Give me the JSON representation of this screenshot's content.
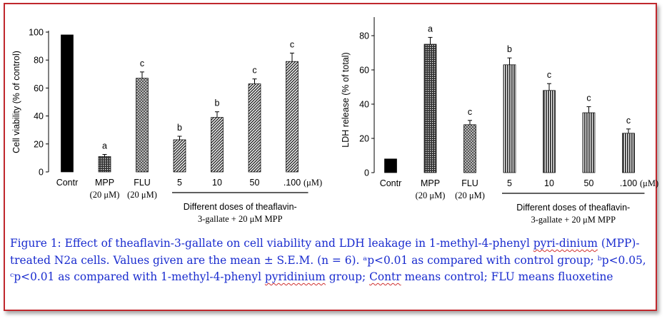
{
  "colors": {
    "frame_border": "#c0282d",
    "caption_text": "#1a2ccf",
    "bar_control": "#000000",
    "spellcheck": "#d03030"
  },
  "chart_data": [
    {
      "type": "bar",
      "ylabel": "Cell viability (% of control)",
      "ylim": [
        0,
        100
      ],
      "yticks": [
        "0",
        "20",
        "40",
        "60",
        "80",
        "100"
      ],
      "categories": [
        "Contr",
        "MPP",
        "FLU",
        "5",
        "10",
        "50",
        ".100"
      ],
      "category_sublabels": [
        "",
        "(20 μM)",
        "(20 μM)",
        "",
        "",
        "",
        ""
      ],
      "unit_label": "(μM)",
      "values": [
        98,
        11,
        67,
        23,
        39,
        63,
        79
      ],
      "errors": [
        0,
        1.5,
        4.5,
        2.5,
        4,
        3.5,
        6
      ],
      "significance": [
        "",
        "a",
        "c",
        "b",
        "b",
        "c",
        "c"
      ],
      "patterns": [
        "solid",
        "dots",
        "cross",
        "diag",
        "diag",
        "diag",
        "diag"
      ],
      "group_label": [
        "Different doses of theaflavin-",
        "3-gallate + 20 μM MPP"
      ]
    },
    {
      "type": "bar",
      "ylabel": "LDH release (% of total)",
      "ylim": [
        0,
        90
      ],
      "yticks": [
        "0",
        "20",
        "40",
        "60",
        "80"
      ],
      "categories": [
        "Contr",
        "MPP",
        "FLU",
        "5",
        "10",
        "50",
        ".100"
      ],
      "category_sublabels": [
        "",
        "(20 μM)",
        "(20 μM)",
        "",
        "",
        "",
        ""
      ],
      "unit_label": "(μM)",
      "values": [
        8,
        75,
        28,
        63,
        48,
        35,
        23
      ],
      "errors": [
        0,
        4,
        2.5,
        4,
        4,
        3.5,
        2.5
      ],
      "significance": [
        "",
        "a",
        "c",
        "b",
        "c",
        "c",
        "c"
      ],
      "patterns": [
        "solid",
        "dots",
        "cross",
        "vert",
        "vert",
        "vert",
        "vert"
      ],
      "group_label": [
        "Different doses of theaflavin-",
        "3-gallate + 20 μM MPP"
      ]
    }
  ],
  "caption": {
    "p1": "Figure 1: Effect of theaflavin-3-gallate on cell viability and LDH leakage in 1-methyl-4-phenyl ",
    "p2": "pyri-dinium",
    "p3": " (MPP)-treated N2a cells. Values given are the mean ± S.E.M. (n = 6). ᵃp<0.01 as compared with control group; ᵇp<0.05, ᶜp<0.01 as compared with 1-methyl-4-phenyl ",
    "p4": "pyridinium",
    "p5": " group; ",
    "p6": "Contr",
    "p7": " means control; FLU means fluoxetine"
  }
}
